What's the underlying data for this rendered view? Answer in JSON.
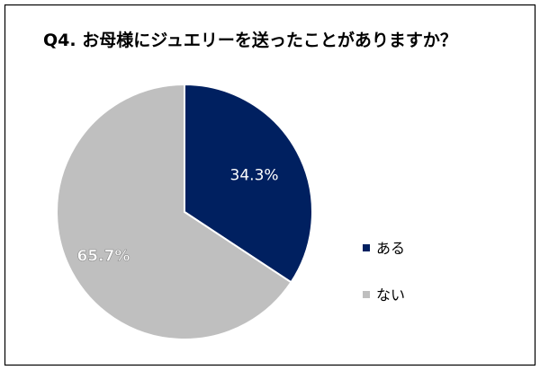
{
  "chart_data": {
    "type": "pie",
    "title": "Q4. お母様にジュエリーを送ったことがありますか？",
    "slices": [
      {
        "label": "ある",
        "value": 34.3,
        "value_label": "34.3%",
        "color": "#002060",
        "label_color": "#ffffff"
      },
      {
        "label": "ない",
        "value": 65.7,
        "value_label": "65.7%",
        "color": "#bfbfbf",
        "label_color": "#ffffff"
      }
    ],
    "start_angle_deg": 0,
    "direction": "clockwise",
    "legend_position": "right"
  }
}
